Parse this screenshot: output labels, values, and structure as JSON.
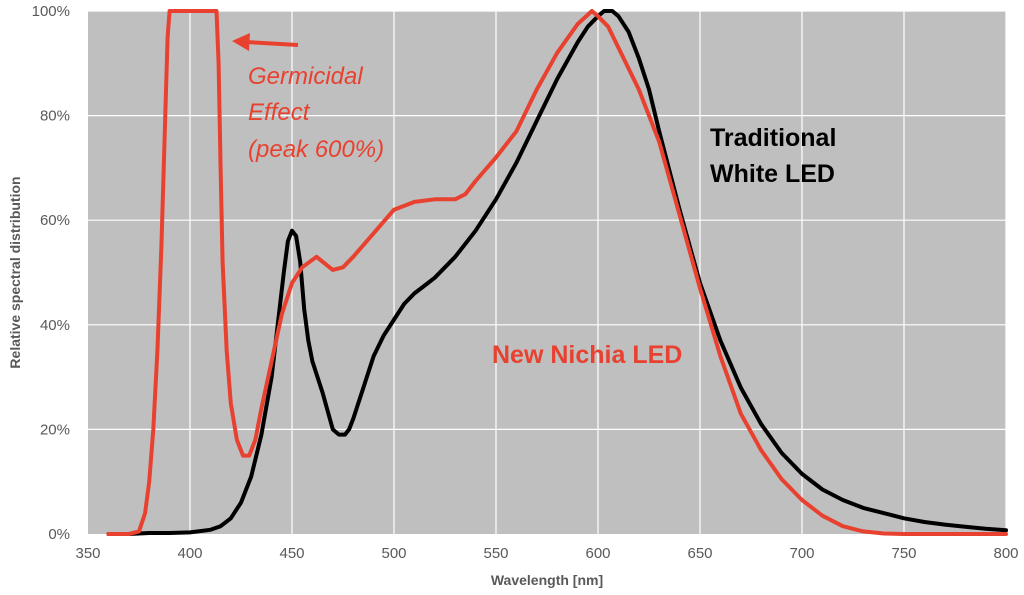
{
  "chart_data": {
    "type": "line",
    "title": "",
    "xlabel": "Wavelength [nm]",
    "ylabel": "Relative spectral distribution",
    "xlim": [
      350,
      800
    ],
    "ylim": [
      0,
      100
    ],
    "x_ticks": [
      "350",
      "400",
      "450",
      "500",
      "550",
      "600",
      "650",
      "700",
      "750",
      "800"
    ],
    "y_ticks": [
      "0%",
      "20%",
      "40%",
      "60%",
      "80%",
      "100%"
    ],
    "grid": true,
    "background_color": "#bfbfbf",
    "series": [
      {
        "name": "Traditional White LED",
        "color": "#000000",
        "x": [
          360,
          370,
          380,
          390,
          400,
          410,
          415,
          420,
          425,
          430,
          435,
          440,
          443,
          446,
          448,
          450,
          452,
          454,
          456,
          458,
          460,
          465,
          470,
          473,
          476,
          478,
          480,
          485,
          490,
          495,
          500,
          505,
          510,
          515,
          520,
          530,
          540,
          550,
          560,
          570,
          580,
          590,
          595,
          600,
          603,
          607,
          610,
          615,
          620,
          625,
          630,
          640,
          650,
          660,
          670,
          680,
          690,
          700,
          710,
          720,
          730,
          740,
          750,
          760,
          770,
          780,
          790,
          800
        ],
        "y": [
          0,
          0,
          0.2,
          0.2,
          0.3,
          0.8,
          1.5,
          3,
          6,
          11,
          19,
          30,
          40,
          50,
          56,
          58,
          57,
          52,
          43,
          37,
          33,
          27,
          20,
          19,
          19,
          20,
          22,
          28,
          34,
          38,
          41,
          44,
          46,
          47.5,
          49,
          53,
          58,
          64,
          71,
          79,
          87,
          94,
          97,
          99,
          100,
          100,
          99,
          96,
          91,
          85,
          77,
          62,
          48,
          37,
          28,
          21,
          15.5,
          11.5,
          8.5,
          6.5,
          5,
          4,
          3,
          2.3,
          1.8,
          1.4,
          1,
          0.7
        ]
      },
      {
        "name": "New Nichia LED",
        "color": "#e8412f",
        "x": [
          360,
          370,
          375,
          378,
          380,
          382,
          384,
          386,
          387.5,
          389,
          390,
          413,
          414,
          415,
          416,
          418,
          420,
          423,
          426,
          429,
          432,
          435,
          440,
          445,
          450,
          455,
          462,
          470,
          475,
          480,
          490,
          500,
          510,
          520,
          530,
          535,
          540,
          550,
          560,
          570,
          580,
          590,
          597,
          600,
          605,
          610,
          620,
          630,
          640,
          650,
          660,
          670,
          680,
          690,
          700,
          710,
          720,
          730,
          740,
          750,
          760,
          770,
          780,
          790,
          800
        ],
        "y": [
          0,
          0,
          0.5,
          4,
          10,
          20,
          35,
          55,
          75,
          95,
          100,
          100,
          90,
          70,
          52,
          35,
          25,
          18,
          15,
          15,
          18,
          24,
          33,
          42,
          48,
          51,
          53,
          50.5,
          51,
          53,
          57.5,
          62,
          63.5,
          64,
          64,
          65,
          67.5,
          72,
          77,
          85,
          92,
          97.5,
          100,
          99,
          97,
          93,
          85,
          75,
          61,
          47,
          34,
          23,
          16,
          10.5,
          6.5,
          3.5,
          1.5,
          0.5,
          0.1,
          0,
          0,
          0,
          0,
          0,
          0
        ]
      }
    ],
    "annotations": [
      {
        "text": "Traditional",
        "color": "#000000"
      },
      {
        "text": "White LED",
        "color": "#000000"
      },
      {
        "text": "New Nichia LED",
        "color": "#e8412f"
      },
      {
        "text": "Germicidal",
        "color": "#e8412f"
      },
      {
        "text": "Effect",
        "color": "#e8412f"
      },
      {
        "text": "(peak 600%)",
        "color": "#e8412f"
      }
    ]
  }
}
